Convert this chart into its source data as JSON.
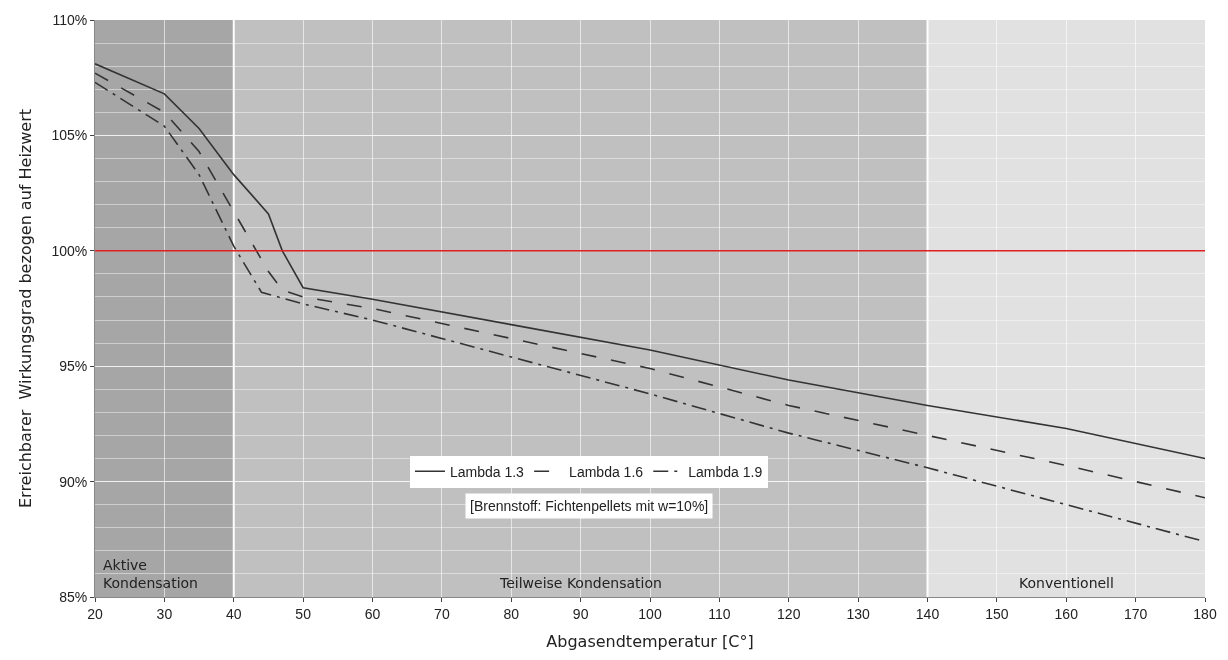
{
  "chart_data": {
    "type": "line",
    "xlabel": "Abgasendtemperatur [C°]",
    "ylabel": "Erreichbarer  Wirkungsgrad bezogen auf Heizwert",
    "xlim": [
      20,
      180
    ],
    "xticks": [
      20,
      30,
      40,
      50,
      60,
      70,
      80,
      90,
      100,
      110,
      120,
      130,
      140,
      150,
      160,
      170,
      180
    ],
    "ylim": [
      85,
      110
    ],
    "yticks": [
      {
        "value": 85,
        "label": "85%"
      },
      {
        "value": 90,
        "label": "90%"
      },
      {
        "value": 95,
        "label": "95%"
      },
      {
        "value": 100,
        "label": "100%"
      },
      {
        "value": 105,
        "label": "105%"
      },
      {
        "value": 110,
        "label": "110%"
      }
    ],
    "grid": true,
    "legend": "bottom",
    "marker": "none",
    "series": [
      {
        "name": "Lambda 1.3",
        "color": "#333333",
        "line_style": "solid",
        "x": [
          20,
          30,
          35,
          40,
          45,
          47,
          50,
          60,
          80,
          100,
          120,
          140,
          160,
          180
        ],
        "values": [
          108.1,
          106.8,
          105.3,
          103.3,
          101.6,
          100.0,
          98.4,
          97.9,
          96.8,
          95.7,
          94.4,
          93.3,
          92.3,
          91.0
        ]
      },
      {
        "name": "Lambda 1.6",
        "color": "#333333",
        "line_style": "dashed",
        "x": [
          20,
          30,
          35,
          40,
          45,
          47,
          50,
          60,
          80,
          100,
          120,
          140,
          160,
          180
        ],
        "values": [
          107.7,
          106.0,
          104.3,
          101.7,
          99.1,
          98.3,
          98.0,
          97.5,
          96.2,
          94.9,
          93.3,
          92.0,
          90.7,
          89.3
        ]
      },
      {
        "name": "Lambda 1.9",
        "color": "#333333",
        "line_style": "dashdot",
        "x": [
          20,
          30,
          35,
          40,
          44,
          50,
          60,
          80,
          100,
          120,
          140,
          160,
          180
        ],
        "values": [
          107.3,
          105.4,
          103.3,
          100.2,
          98.2,
          97.7,
          97.0,
          95.4,
          93.8,
          92.1,
          90.6,
          89.0,
          87.4
        ]
      }
    ],
    "ref_lines": [
      {
        "axis": "y",
        "value": 100,
        "color": "#e02020"
      }
    ],
    "bands": [
      {
        "axis": "x",
        "from": 20,
        "to": 40,
        "label": "Aktive\nKondensation",
        "color": "#a6a6a6"
      },
      {
        "axis": "x",
        "from": 40,
        "to": 140,
        "label": "Teilweise Kondensation",
        "color": "#c0c0c0"
      },
      {
        "axis": "x",
        "from": 140,
        "to": 180,
        "label": "Konventionell",
        "color": "#e1e1e1"
      }
    ],
    "annotations": [
      "[Brennstoff: Fichtenpellets mit w=10%]"
    ]
  }
}
